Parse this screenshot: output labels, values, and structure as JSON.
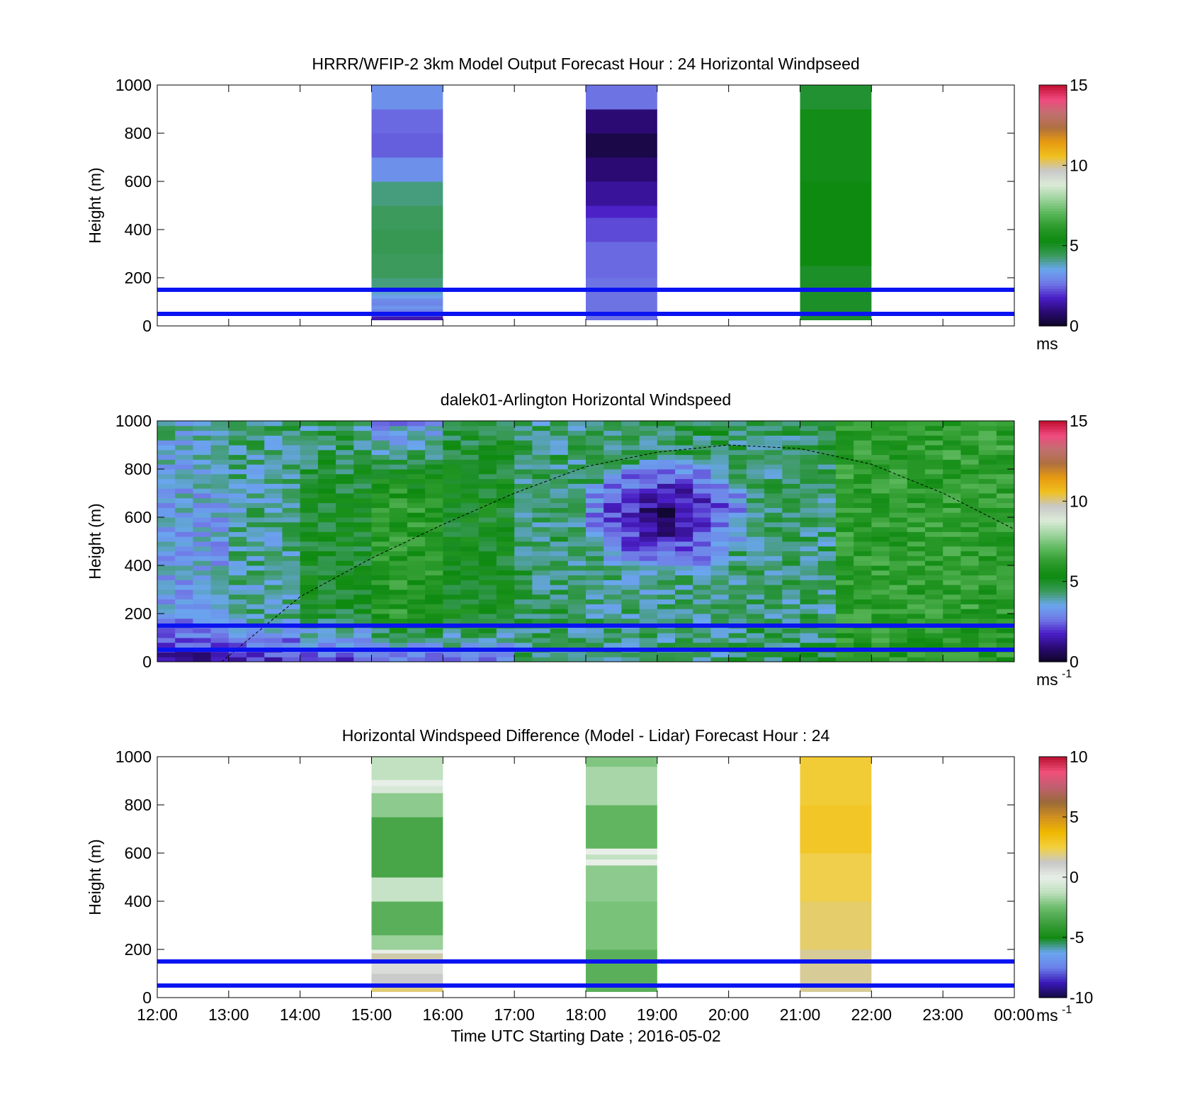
{
  "colormap_speed": [
    "#0d0626",
    "#2a0a72",
    "#4a1ec6",
    "#7078e6",
    "#6aa6ee",
    "#3a9a5a",
    "#0e8a10",
    "#2b9a2b",
    "#5cb85c",
    "#9ed49e",
    "#dcebd8",
    "#c8c8c8",
    "#f0c020",
    "#e69a10",
    "#b07040",
    "#c07070",
    "#f04a80",
    "#c01030"
  ],
  "colormap_diff": [
    "#140a40",
    "#3a18b8",
    "#6a80ea",
    "#6aa6ee",
    "#138a13",
    "#3f9f3f",
    "#6cbc6c",
    "#bfe0bf",
    "#e8eee8",
    "#c8c8c8",
    "#f2d040",
    "#f0b800",
    "#d09020",
    "#9a6a3a",
    "#c06070",
    "#f0507a",
    "#b81030"
  ],
  "chart_data": [
    {
      "id": "model",
      "type": "heatmap",
      "title": "HRRR/WFIP-2 3km Model Output   Forecast Hour : 24 Horizontal Windpseed",
      "xlabel": "",
      "ylabel": "Height (m)",
      "xlim": [
        12,
        24
      ],
      "ylim": [
        0,
        1000
      ],
      "y_ticks": [
        "0",
        "200",
        "400",
        "600",
        "800",
        "1000"
      ],
      "x_ticks": [],
      "colorbar": {
        "min": 0,
        "max": 15,
        "ticks": [
          "0",
          "5",
          "10",
          "15"
        ],
        "unit": "ms",
        "unit_sup": "",
        "colormap": "speed"
      },
      "reference_lines_m": [
        50,
        150
      ],
      "columns": [
        {
          "x_start": 15,
          "x_end": 16,
          "levels": [
            {
              "h0": 25,
              "h1": 40,
              "v": 1.5
            },
            {
              "h0": 40,
              "h1": 55,
              "v": 2.4
            },
            {
              "h0": 55,
              "h1": 70,
              "v": 2.8
            },
            {
              "h0": 70,
              "h1": 85,
              "v": 3.2
            },
            {
              "h0": 85,
              "h1": 100,
              "v": 2.9
            },
            {
              "h0": 100,
              "h1": 115,
              "v": 3.0
            },
            {
              "h0": 115,
              "h1": 130,
              "v": 3.4
            },
            {
              "h0": 130,
              "h1": 160,
              "v": 3.7
            },
            {
              "h0": 160,
              "h1": 200,
              "v": 4.2
            },
            {
              "h0": 200,
              "h1": 300,
              "v": 4.4
            },
            {
              "h0": 300,
              "h1": 400,
              "v": 4.5
            },
            {
              "h0": 400,
              "h1": 500,
              "v": 4.4
            },
            {
              "h0": 500,
              "h1": 600,
              "v": 4.2
            },
            {
              "h0": 600,
              "h1": 700,
              "v": 3.1
            },
            {
              "h0": 700,
              "h1": 800,
              "v": 2.4
            },
            {
              "h0": 800,
              "h1": 900,
              "v": 2.5
            },
            {
              "h0": 900,
              "h1": 1000,
              "v": 3.1
            }
          ]
        },
        {
          "x_start": 18,
          "x_end": 19,
          "levels": [
            {
              "h0": 25,
              "h1": 200,
              "v": 2.6
            },
            {
              "h0": 200,
              "h1": 350,
              "v": 2.5
            },
            {
              "h0": 350,
              "h1": 450,
              "v": 2.2
            },
            {
              "h0": 450,
              "h1": 500,
              "v": 1.8
            },
            {
              "h0": 500,
              "h1": 600,
              "v": 1.3
            },
            {
              "h0": 600,
              "h1": 700,
              "v": 0.9
            },
            {
              "h0": 700,
              "h1": 800,
              "v": 0.4
            },
            {
              "h0": 800,
              "h1": 900,
              "v": 0.9
            },
            {
              "h0": 900,
              "h1": 1000,
              "v": 2.6
            }
          ]
        },
        {
          "x_start": 21,
          "x_end": 22,
          "levels": [
            {
              "h0": 25,
              "h1": 250,
              "v": 5.0
            },
            {
              "h0": 250,
              "h1": 600,
              "v": 5.3
            },
            {
              "h0": 600,
              "h1": 900,
              "v": 5.2
            },
            {
              "h0": 900,
              "h1": 1000,
              "v": 4.9
            }
          ]
        }
      ]
    },
    {
      "id": "lidar",
      "type": "heatmap",
      "title": "dalek01-Arlington  Horizontal Windspeed",
      "xlabel": "",
      "ylabel": "Height (m)",
      "xlim": [
        12,
        24
      ],
      "ylim": [
        0,
        1000
      ],
      "y_ticks": [
        "0",
        "200",
        "400",
        "600",
        "800",
        "1000"
      ],
      "x_ticks": [],
      "colorbar": {
        "min": 0,
        "max": 15,
        "ticks": [
          "0",
          "5",
          "10",
          "15"
        ],
        "unit": "ms",
        "unit_sup": "-1",
        "colormap": "speed"
      },
      "reference_lines_m": [
        50,
        150
      ],
      "overlay_curve": {
        "style": "dashed",
        "points": [
          [
            12.9,
            0
          ],
          [
            14.0,
            270
          ],
          [
            15.0,
            430
          ],
          [
            16.0,
            570
          ],
          [
            17.0,
            700
          ],
          [
            18.0,
            810
          ],
          [
            19.0,
            870
          ],
          [
            20.0,
            900
          ],
          [
            21.0,
            885
          ],
          [
            22.0,
            820
          ],
          [
            23.0,
            700
          ],
          [
            24.0,
            550
          ]
        ]
      },
      "slow_core": {
        "x_start": 18.0,
        "x_end": 20.2,
        "h0": 380,
        "h1": 840,
        "min_speed": 0.5
      },
      "time_profile": [
        {
          "t0": 12.0,
          "t1": 13.0,
          "bottom": 1.2,
          "mid": 3.4,
          "top": 4.0
        },
        {
          "t0": 13.0,
          "t1": 14.0,
          "bottom": 1.6,
          "mid": 4.1,
          "top": 4.3
        },
        {
          "t0": 14.0,
          "t1": 15.0,
          "bottom": 2.0,
          "mid": 5.0,
          "top": 4.2
        },
        {
          "t0": 15.0,
          "t1": 16.0,
          "bottom": 2.4,
          "mid": 6.0,
          "top": 3.0
        },
        {
          "t0": 16.0,
          "t1": 17.0,
          "bottom": 2.9,
          "mid": 5.2,
          "top": 4.8
        },
        {
          "t0": 17.0,
          "t1": 18.0,
          "bottom": 4.2,
          "mid": 4.4,
          "top": 4.3
        },
        {
          "t0": 18.0,
          "t1": 20.0,
          "bottom": 4.3,
          "mid": 4.2,
          "top": 4.6
        },
        {
          "t0": 20.0,
          "t1": 21.5,
          "bottom": 4.6,
          "mid": 4.3,
          "top": 4.5
        },
        {
          "t0": 21.5,
          "t1": 24.0,
          "bottom": 6.0,
          "mid": 6.2,
          "top": 6.3
        }
      ]
    },
    {
      "id": "difference",
      "type": "heatmap",
      "title": "Horizontal Windspeed Difference (Model - Lidar) Forecast Hour : 24",
      "xlabel": "Time UTC  Starting Date ; 2016-05-02",
      "ylabel": "Height (m)",
      "xlim": [
        12,
        24
      ],
      "ylim": [
        0,
        1000
      ],
      "y_ticks": [
        "0",
        "200",
        "400",
        "600",
        "800",
        "1000"
      ],
      "x_ticks": [
        "12:00",
        "13:00",
        "14:00",
        "15:00",
        "16:00",
        "17:00",
        "18:00",
        "19:00",
        "20:00",
        "21:00",
        "22:00",
        "23:00",
        "00:00"
      ],
      "colorbar": {
        "min": -10,
        "max": 10,
        "ticks": [
          "-10",
          "-5",
          "0",
          "5",
          "10"
        ],
        "unit": "ms",
        "unit_sup": "-1",
        "colormap": "diff"
      },
      "reference_lines_m": [
        50,
        150
      ],
      "columns": [
        {
          "x_start": 15,
          "x_end": 16,
          "levels": [
            {
              "h0": 25,
              "h1": 50,
              "v": 2.0
            },
            {
              "h0": 50,
              "h1": 100,
              "v": 1.2
            },
            {
              "h0": 100,
              "h1": 150,
              "v": 0.6
            },
            {
              "h0": 150,
              "h1": 185,
              "v": 1.5
            },
            {
              "h0": 185,
              "h1": 200,
              "v": 0.0
            },
            {
              "h0": 200,
              "h1": 260,
              "v": -1.8
            },
            {
              "h0": 260,
              "h1": 400,
              "v": -3.0
            },
            {
              "h0": 400,
              "h1": 500,
              "v": -1.0
            },
            {
              "h0": 500,
              "h1": 750,
              "v": -3.5
            },
            {
              "h0": 750,
              "h1": 850,
              "v": -2.0
            },
            {
              "h0": 850,
              "h1": 880,
              "v": -0.5
            },
            {
              "h0": 880,
              "h1": 905,
              "v": 0.0
            },
            {
              "h0": 905,
              "h1": 1000,
              "v": -1.2
            }
          ]
        },
        {
          "x_start": 18,
          "x_end": 19,
          "levels": [
            {
              "h0": 25,
              "h1": 200,
              "v": -3.0
            },
            {
              "h0": 200,
              "h1": 400,
              "v": -2.3
            },
            {
              "h0": 400,
              "h1": 550,
              "v": -2.0
            },
            {
              "h0": 550,
              "h1": 575,
              "v": 0.0
            },
            {
              "h0": 575,
              "h1": 595,
              "v": -1.2
            },
            {
              "h0": 595,
              "h1": 620,
              "v": 0.0
            },
            {
              "h0": 620,
              "h1": 800,
              "v": -2.8
            },
            {
              "h0": 800,
              "h1": 960,
              "v": -1.6
            },
            {
              "h0": 960,
              "h1": 1000,
              "v": -2.2
            }
          ]
        },
        {
          "x_start": 21,
          "x_end": 22,
          "levels": [
            {
              "h0": 25,
              "h1": 200,
              "v": 1.7
            },
            {
              "h0": 200,
              "h1": 400,
              "v": 2.1
            },
            {
              "h0": 400,
              "h1": 600,
              "v": 2.4
            },
            {
              "h0": 600,
              "h1": 800,
              "v": 3.0
            },
            {
              "h0": 800,
              "h1": 1000,
              "v": 2.7
            }
          ]
        }
      ]
    }
  ]
}
